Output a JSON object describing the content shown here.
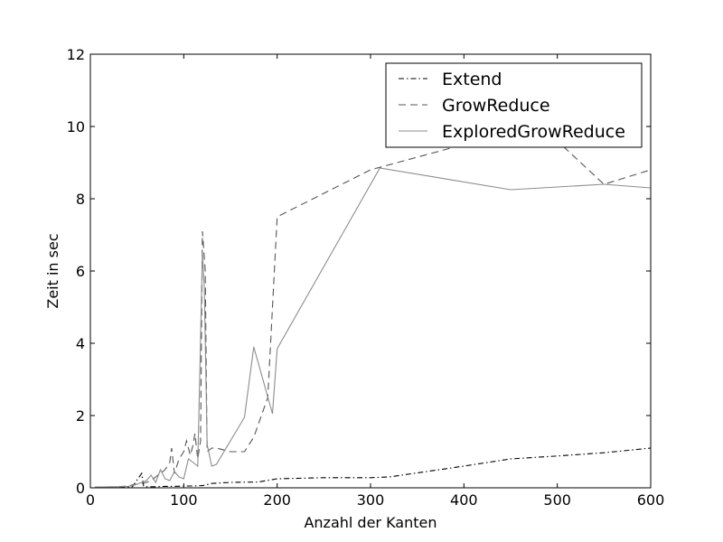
{
  "chart_data": {
    "type": "line",
    "title": "",
    "xlabel": "Anzahl der Kanten",
    "ylabel": "Zeit in sec",
    "xlim": [
      0,
      600
    ],
    "ylim": [
      0,
      12
    ],
    "xticks": [
      0,
      100,
      200,
      300,
      400,
      500,
      600
    ],
    "yticks": [
      0,
      2,
      4,
      6,
      8,
      10,
      12
    ],
    "xtick_labels": [
      "0",
      "100",
      "200",
      "300",
      "400",
      "500",
      "600"
    ],
    "ytick_labels": [
      "0",
      "2",
      "4",
      "6",
      "8",
      "10",
      "12"
    ],
    "grid": false,
    "legend_position": "top-right",
    "series": [
      {
        "name": "Extend",
        "color": "#000000",
        "style": "dash-dot",
        "x": [
          5,
          30,
          45,
          55,
          57,
          60,
          70,
          80,
          90,
          100,
          110,
          120,
          130,
          150,
          180,
          200,
          250,
          300,
          320,
          400,
          450,
          500,
          550,
          600
        ],
        "y": [
          0.01,
          0.02,
          0.03,
          0.4,
          0.05,
          0.03,
          0.03,
          0.04,
          0.04,
          0.05,
          0.05,
          0.06,
          0.12,
          0.15,
          0.16,
          0.25,
          0.28,
          0.28,
          0.3,
          0.6,
          0.8,
          0.88,
          0.97,
          1.1
        ]
      },
      {
        "name": "GrowReduce",
        "color": "#555555",
        "style": "dashed",
        "x": [
          5,
          30,
          40,
          45,
          50,
          55,
          60,
          65,
          70,
          75,
          80,
          85,
          87,
          90,
          95,
          100,
          103,
          107,
          110,
          112,
          115,
          118,
          120,
          123,
          125,
          130,
          135,
          150,
          165,
          175,
          190,
          200,
          300,
          400,
          450,
          500,
          550,
          600
        ],
        "y": [
          0.02,
          0.03,
          0.05,
          0.08,
          0.1,
          0.12,
          0.15,
          0.2,
          0.3,
          0.4,
          0.5,
          0.7,
          1.1,
          0.4,
          0.8,
          1.0,
          1.3,
          0.9,
          1.2,
          1.5,
          0.8,
          1.3,
          7.1,
          6.0,
          1.0,
          1.1,
          1.1,
          1.0,
          1.0,
          1.4,
          2.5,
          7.5,
          8.8,
          9.5,
          10.0,
          9.6,
          8.4,
          8.8
        ]
      },
      {
        "name": "ExploredGrowReduce",
        "color": "#8c8c8c",
        "style": "solid",
        "x": [
          5,
          30,
          40,
          45,
          50,
          55,
          60,
          65,
          70,
          75,
          80,
          85,
          90,
          95,
          100,
          105,
          110,
          115,
          120,
          122,
          125,
          130,
          135,
          165,
          175,
          195,
          200,
          310,
          450,
          550,
          600
        ],
        "y": [
          0.02,
          0.03,
          0.04,
          0.06,
          0.1,
          0.15,
          0.2,
          0.35,
          0.15,
          0.5,
          0.25,
          0.2,
          0.45,
          0.3,
          0.25,
          0.8,
          0.7,
          0.6,
          6.5,
          5.5,
          1.2,
          0.6,
          0.65,
          1.95,
          3.9,
          2.05,
          3.85,
          8.85,
          8.25,
          8.4,
          8.3
        ]
      }
    ]
  }
}
